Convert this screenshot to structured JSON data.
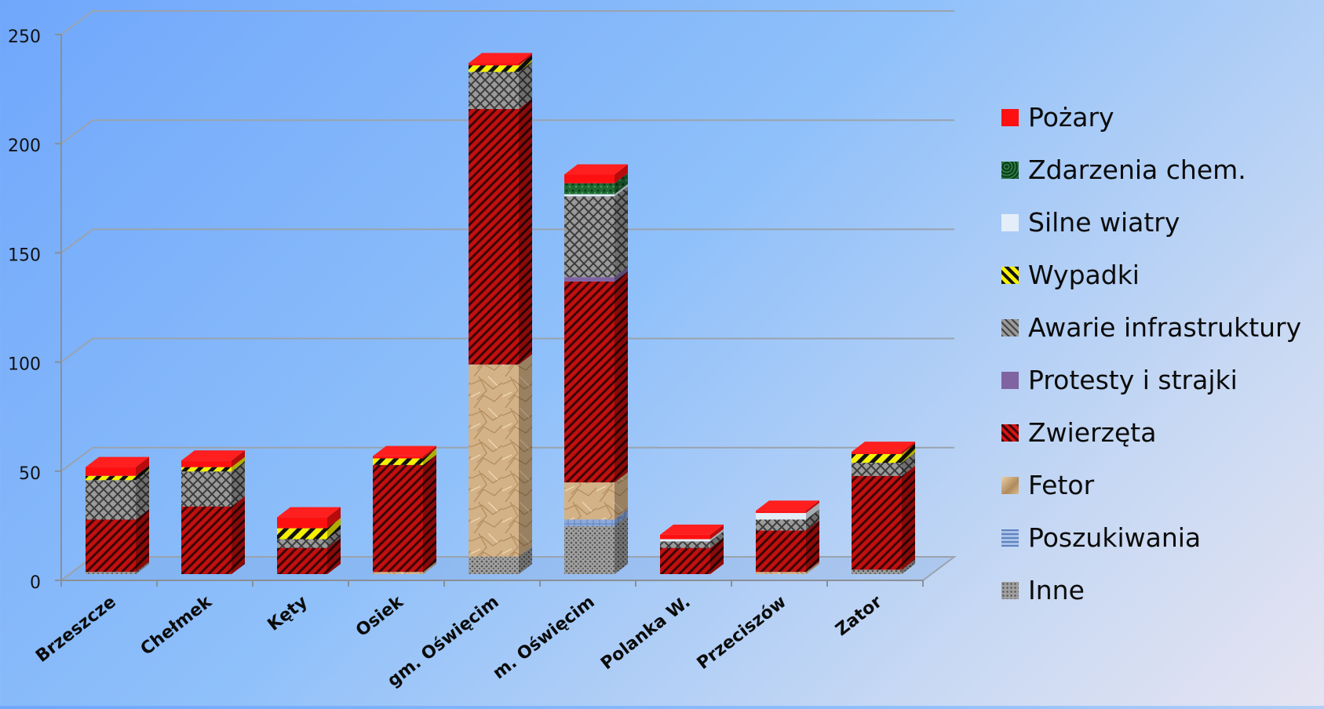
{
  "chart_data": {
    "type": "bar",
    "stacked": true,
    "categories": [
      "Brzeszcze",
      "Chełmek",
      "Kęty",
      "Osiek",
      "gm. Oświęcim",
      "m. Oświęcim",
      "Polanka W.",
      "Przeciszów",
      "Zator"
    ],
    "yticks": [
      "0",
      "50",
      "100",
      "150",
      "200",
      "250"
    ],
    "ylim": [
      0,
      250
    ],
    "grid": true,
    "legend_position": "right",
    "series": [
      {
        "name": "Inne",
        "color": "#8e8e8e",
        "values": [
          1,
          0,
          0,
          0,
          8,
          22,
          0,
          0,
          2
        ]
      },
      {
        "name": "Poszukiwania",
        "color": "#8eaadb",
        "values": [
          0,
          0,
          0,
          0,
          0,
          3,
          0,
          0,
          0
        ]
      },
      {
        "name": "Fetor",
        "color": "#d2b48c",
        "values": [
          0,
          0,
          0,
          1,
          88,
          17,
          0,
          1,
          0
        ]
      },
      {
        "name": "Zwierzęta",
        "color": "#cc1010",
        "values": [
          24,
          31,
          12,
          49,
          117,
          92,
          12,
          19,
          43
        ]
      },
      {
        "name": "Protesty i strajki",
        "color": "#8064a2",
        "values": [
          0,
          0,
          0,
          0,
          0,
          2,
          0,
          0,
          0
        ]
      },
      {
        "name": "Awarie infrastruktury",
        "color": "#8a8a8a",
        "values": [
          18,
          16,
          4,
          0,
          17,
          37,
          3,
          5,
          6
        ]
      },
      {
        "name": "Wypadki",
        "color": "#f5f000",
        "values": [
          2,
          2,
          5,
          3,
          3,
          0,
          0,
          0,
          4
        ]
      },
      {
        "name": "Silne wiatry",
        "color": "#e4eef8",
        "values": [
          0,
          0,
          0,
          0,
          0,
          1,
          1,
          3,
          0
        ]
      },
      {
        "name": "Zdarzenia chem.",
        "color": "#1e6a32",
        "values": [
          0,
          0,
          0,
          0,
          0,
          5,
          0,
          0,
          0
        ]
      },
      {
        "name": "Pożary",
        "color": "#ff0000",
        "values": [
          4,
          3,
          5,
          1,
          1,
          4,
          2,
          1,
          1
        ]
      }
    ]
  },
  "legend": {
    "items": [
      {
        "label": "Pożary",
        "color": "#ff0000"
      },
      {
        "label": "Zdarzenia chem.",
        "color": "#1e6a32"
      },
      {
        "label": "Silne wiatry",
        "color": "#e4eef8"
      },
      {
        "label": "Wypadki",
        "color": "#f5f000"
      },
      {
        "label": "Awarie infrastruktury",
        "color": "#8a8a8a"
      },
      {
        "label": "Protesty i strajki",
        "color": "#8064a2"
      },
      {
        "label": "Zwierzęta",
        "color": "#cc1010"
      },
      {
        "label": "Fetor",
        "color": "#d2b48c"
      },
      {
        "label": "Poszukiwania",
        "color": "#8eaadb"
      },
      {
        "label": "Inne",
        "color": "#8e8e8e"
      }
    ]
  }
}
